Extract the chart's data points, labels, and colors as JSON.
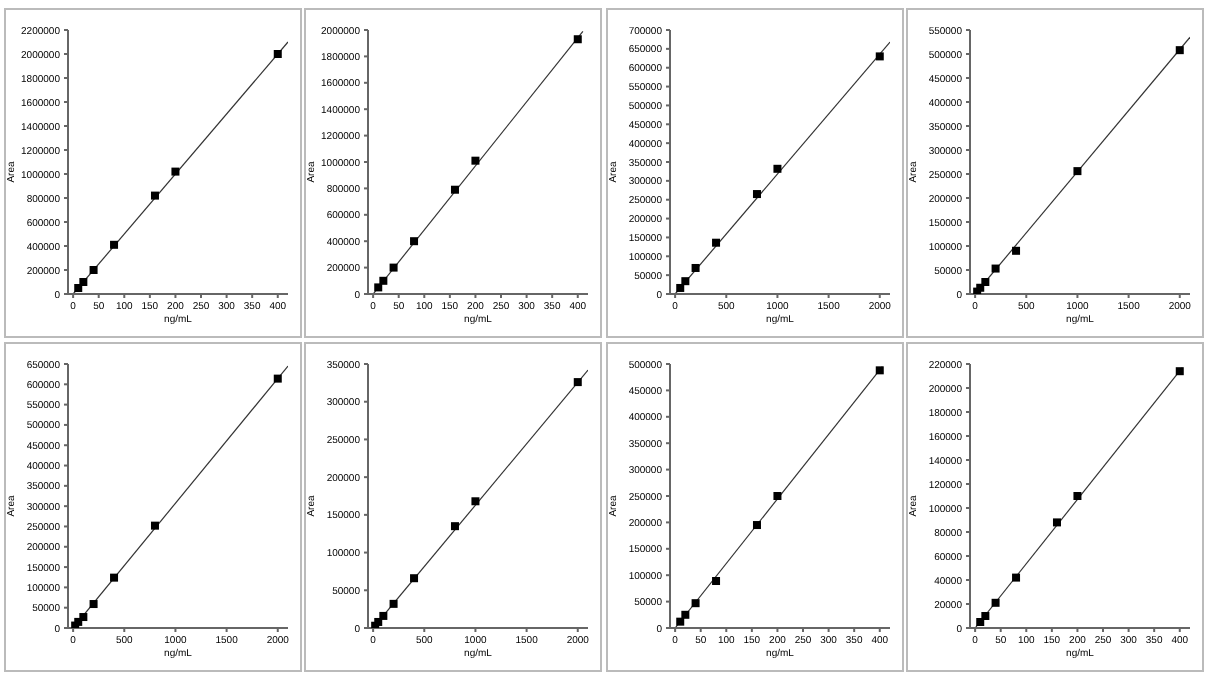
{
  "chart_data": [
    {
      "type": "scatter",
      "xlabel": "ng/mL",
      "ylabel": "Area",
      "marker": "square",
      "xlim": [
        -10,
        420
      ],
      "xticks": [
        0,
        50,
        100,
        150,
        200,
        250,
        300,
        350,
        400
      ],
      "ylim": [
        0,
        2200000
      ],
      "yticks": [
        0,
        200000,
        400000,
        600000,
        800000,
        1000000,
        1200000,
        1400000,
        1600000,
        1800000,
        2000000,
        2200000
      ],
      "series": [
        {
          "type": "scatter",
          "color": "#000000",
          "x": [
            10,
            20,
            40,
            80,
            160,
            200,
            400
          ],
          "values": [
            50000,
            100000,
            200000,
            410000,
            820000,
            1020000,
            2000000
          ]
        },
        {
          "type": "line",
          "marker": "none",
          "color": "#333333",
          "x": [
            0,
            420
          ],
          "values": [
            0,
            2100000
          ]
        }
      ]
    },
    {
      "type": "scatter",
      "xlabel": "ng/mL",
      "ylabel": "Area",
      "marker": "square",
      "xlim": [
        -10,
        420
      ],
      "xticks": [
        0,
        50,
        100,
        150,
        200,
        250,
        300,
        350,
        400
      ],
      "ylim": [
        0,
        2000000
      ],
      "yticks": [
        0,
        200000,
        400000,
        600000,
        800000,
        1000000,
        1200000,
        1400000,
        1600000,
        1800000,
        2000000
      ],
      "series": [
        {
          "type": "scatter",
          "color": "#000000",
          "x": [
            10,
            20,
            40,
            80,
            160,
            200,
            400
          ],
          "values": [
            50000,
            100000,
            200000,
            400000,
            790000,
            1010000,
            1930000
          ]
        },
        {
          "type": "line",
          "marker": "none",
          "color": "#333333",
          "x": [
            0,
            410
          ],
          "values": [
            0,
            1990000
          ]
        }
      ]
    },
    {
      "type": "scatter",
      "xlabel": "ng/mL",
      "ylabel": "Area",
      "marker": "square",
      "xlim": [
        -50,
        2100
      ],
      "xticks": [
        0,
        500,
        1000,
        1500,
        2000
      ],
      "ylim": [
        0,
        700000
      ],
      "yticks": [
        0,
        50000,
        100000,
        150000,
        200000,
        250000,
        300000,
        350000,
        400000,
        450000,
        500000,
        550000,
        600000,
        650000,
        700000
      ],
      "series": [
        {
          "type": "scatter",
          "color": "#000000",
          "x": [
            50,
            100,
            200,
            400,
            800,
            1000,
            2000
          ],
          "values": [
            16000,
            34000,
            69000,
            136000,
            265000,
            332000,
            630000
          ]
        },
        {
          "type": "line",
          "marker": "none",
          "color": "#333333",
          "x": [
            0,
            2100
          ],
          "values": [
            0,
            668000
          ]
        }
      ]
    },
    {
      "type": "scatter",
      "xlabel": "ng/mL",
      "ylabel": "Area",
      "marker": "square",
      "xlim": [
        -50,
        2100
      ],
      "xticks": [
        0,
        500,
        1000,
        1500,
        2000
      ],
      "ylim": [
        0,
        550000
      ],
      "yticks": [
        0,
        50000,
        100000,
        150000,
        200000,
        250000,
        300000,
        350000,
        400000,
        450000,
        500000,
        550000
      ],
      "series": [
        {
          "type": "scatter",
          "color": "#000000",
          "x": [
            20,
            50,
            100,
            200,
            400,
            1000,
            2000
          ],
          "values": [
            5000,
            13000,
            25000,
            53000,
            90000,
            256000,
            508000
          ]
        },
        {
          "type": "line",
          "marker": "none",
          "color": "#333333",
          "x": [
            0,
            2100
          ],
          "values": [
            0,
            535000
          ]
        }
      ]
    },
    {
      "type": "scatter",
      "xlabel": "ng/mL",
      "ylabel": "Area",
      "marker": "square",
      "xlim": [
        -50,
        2100
      ],
      "xticks": [
        0,
        500,
        1000,
        1500,
        2000
      ],
      "ylim": [
        0,
        650000
      ],
      "yticks": [
        0,
        50000,
        100000,
        150000,
        200000,
        250000,
        300000,
        350000,
        400000,
        450000,
        500000,
        550000,
        600000,
        650000
      ],
      "series": [
        {
          "type": "scatter",
          "color": "#000000",
          "x": [
            20,
            50,
            100,
            200,
            400,
            800,
            2000
          ],
          "values": [
            6000,
            15000,
            27000,
            59000,
            124000,
            252000,
            614000
          ]
        },
        {
          "type": "line",
          "marker": "none",
          "color": "#333333",
          "x": [
            0,
            2100
          ],
          "values": [
            0,
            645000
          ]
        }
      ]
    },
    {
      "type": "scatter",
      "xlabel": "ng/mL",
      "ylabel": "Area",
      "marker": "square",
      "xlim": [
        -50,
        2100
      ],
      "xticks": [
        0,
        500,
        1000,
        1500,
        2000
      ],
      "ylim": [
        0,
        350000
      ],
      "yticks": [
        0,
        50000,
        100000,
        150000,
        200000,
        250000,
        300000,
        350000
      ],
      "series": [
        {
          "type": "scatter",
          "color": "#000000",
          "x": [
            20,
            50,
            100,
            200,
            400,
            800,
            1000,
            2000
          ],
          "values": [
            3000,
            8000,
            16000,
            32000,
            66000,
            135000,
            168000,
            326000
          ]
        },
        {
          "type": "line",
          "marker": "none",
          "color": "#333333",
          "x": [
            0,
            2100
          ],
          "values": [
            0,
            342000
          ]
        }
      ]
    },
    {
      "type": "scatter",
      "xlabel": "ng/mL",
      "ylabel": "Area",
      "marker": "square",
      "xlim": [
        -10,
        420
      ],
      "xticks": [
        0,
        50,
        100,
        150,
        200,
        250,
        300,
        350,
        400
      ],
      "ylim": [
        0,
        500000
      ],
      "yticks": [
        0,
        50000,
        100000,
        150000,
        200000,
        250000,
        300000,
        350000,
        400000,
        450000,
        500000
      ],
      "series": [
        {
          "type": "scatter",
          "color": "#000000",
          "x": [
            10,
            20,
            40,
            80,
            160,
            200,
            400
          ],
          "values": [
            12000,
            25000,
            47000,
            89000,
            195000,
            250000,
            488000
          ]
        },
        {
          "type": "line",
          "marker": "none",
          "color": "#333333",
          "x": [
            0,
            405
          ],
          "values": [
            0,
            495000
          ]
        }
      ]
    },
    {
      "type": "scatter",
      "xlabel": "ng/mL",
      "ylabel": "Area",
      "marker": "square",
      "xlim": [
        -10,
        420
      ],
      "xticks": [
        0,
        50,
        100,
        150,
        200,
        250,
        300,
        350,
        400
      ],
      "ylim": [
        0,
        220000
      ],
      "yticks": [
        0,
        20000,
        40000,
        60000,
        80000,
        100000,
        120000,
        140000,
        160000,
        180000,
        200000,
        220000
      ],
      "series": [
        {
          "type": "scatter",
          "color": "#000000",
          "x": [
            10,
            20,
            40,
            80,
            160,
            200,
            400
          ],
          "values": [
            5000,
            10000,
            21000,
            42000,
            88000,
            110000,
            214000
          ]
        },
        {
          "type": "line",
          "marker": "none",
          "color": "#333333",
          "x": [
            0,
            405
          ],
          "values": [
            0,
            217000
          ]
        }
      ]
    }
  ]
}
